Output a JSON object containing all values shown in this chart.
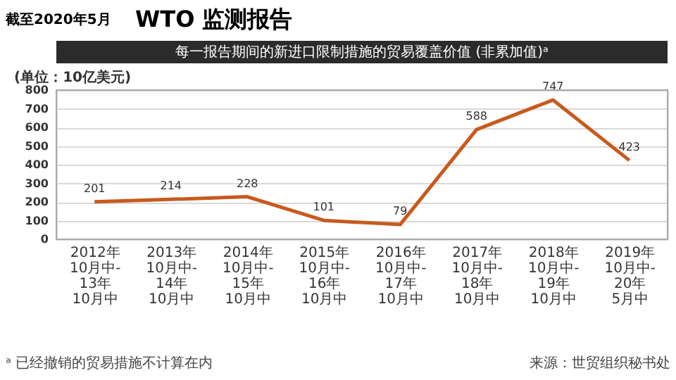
{
  "chart_data": {
    "type": "line",
    "title": "每一报告期间的新进口限制措施的贸易覆盖价值 (非累加值)ᵃ",
    "ylabel": "(单位：10亿美元)",
    "categories": [
      "2012年10月中-13年10月中",
      "2013年10月中-14年10月中",
      "2014年10月中-15年10月中",
      "2015年10月中-16年10月中",
      "2016年10月中-17年10月中",
      "2017年10月中-18年10月中",
      "2018年10月中-19年10月中",
      "2019年10月中-20年5月中"
    ],
    "series": [
      {
        "color": "#c85a1e",
        "values": [
          201,
          214,
          228,
          101,
          79,
          588,
          747,
          423
        ]
      }
    ],
    "ylim": [
      0,
      800
    ],
    "yticks": [
      0,
      100,
      200,
      300,
      400,
      500,
      600,
      700,
      800
    ],
    "grid": "y",
    "data_labels": true,
    "marker": "none",
    "line_style": "solid",
    "legend": false,
    "annotations": [
      "WTO 监测报告",
      "截至2020年5月",
      "ᵃ 已经撤销的贸易措施不计算在内",
      "来源：世贸组织秘书处"
    ]
  }
}
